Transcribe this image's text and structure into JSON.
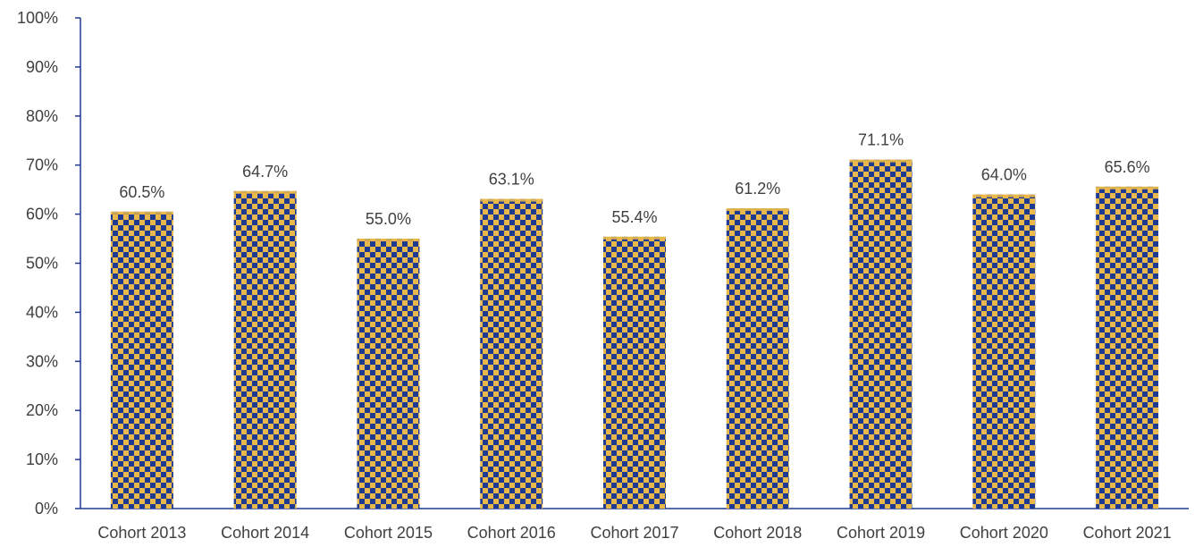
{
  "chart_data": {
    "type": "bar",
    "categories": [
      "Cohort 2013",
      "Cohort 2014",
      "Cohort 2015",
      "Cohort 2016",
      "Cohort 2017",
      "Cohort 2018",
      "Cohort 2019",
      "Cohort 2020",
      "Cohort 2021"
    ],
    "series": [
      {
        "values": [
          60.5,
          64.7,
          55.0,
          63.1,
          55.4,
          61.2,
          71.1,
          64.0,
          65.6
        ],
        "data_labels": [
          "60.5%",
          "64.7%",
          "55.0%",
          "63.1%",
          "55.4%",
          "61.2%",
          "71.1%",
          "64.0%",
          "65.6%"
        ]
      }
    ],
    "ylim": [
      0,
      100
    ],
    "yticks": [
      0,
      10,
      20,
      30,
      40,
      50,
      60,
      70,
      80,
      90,
      100
    ],
    "ytick_labels": [
      "0%",
      "10%",
      "20%",
      "30%",
      "40%",
      "50%",
      "60%",
      "70%",
      "80%",
      "90%",
      "100%"
    ],
    "grid": false,
    "legend": "none",
    "colors": {
      "bar_primary": "#1f3a93",
      "bar_secondary": "#e8b84a",
      "axis": "#1f3a93",
      "text": "#404040"
    }
  }
}
